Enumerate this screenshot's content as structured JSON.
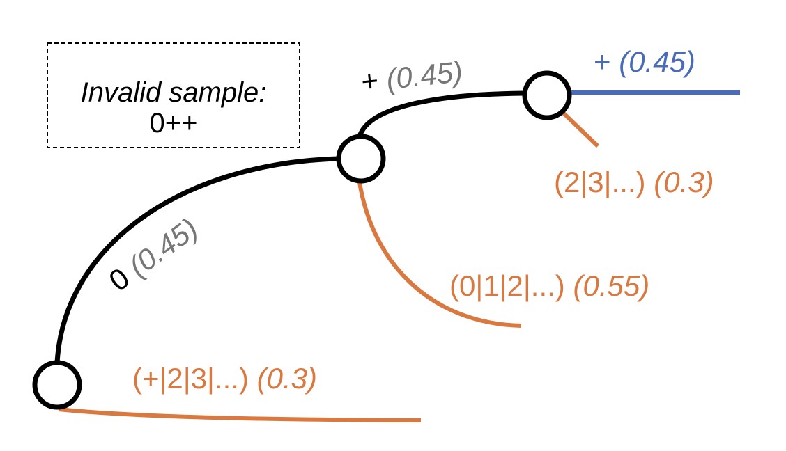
{
  "legend_box": {
    "title": "Invalid sample:",
    "value": "0++"
  },
  "colors": {
    "path": "#000000",
    "rejected": "#D9783F",
    "accepted": "#4A6BBA",
    "probability": "#767676"
  },
  "edges": [
    {
      "symbol": "0",
      "prob": "(0.45)",
      "kind": "path"
    },
    {
      "symbol": "+",
      "prob": "(0.45)",
      "kind": "path"
    },
    {
      "symbol": "+",
      "prob": "(0.45)",
      "kind": "accepted"
    },
    {
      "symbol": "(2|3|...)",
      "prob": "(0.3)",
      "kind": "rejected"
    },
    {
      "symbol": "(0|1|2|...)",
      "prob": "(0.55)",
      "kind": "rejected"
    },
    {
      "symbol": "(+|2|3|...)",
      "prob": "(0.3)",
      "kind": "rejected"
    }
  ]
}
